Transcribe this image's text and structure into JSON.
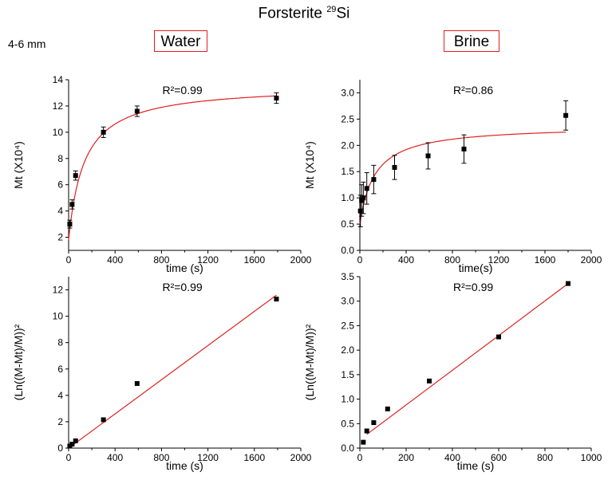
{
  "header": {
    "title_main": "Forsterite ",
    "title_sup": "29",
    "title_end": "Si",
    "size_label": "4-6 mm",
    "water_label": "Water",
    "brine_label": "Brine"
  },
  "colors": {
    "fit_line": "#e02020",
    "marker": "#000000",
    "axis": "#000000",
    "condition_box": "#e02020"
  },
  "chart_data": [
    {
      "type": "scatter",
      "panel": "water-top",
      "annotation": "R²=0.99",
      "xlabel": "time (s)",
      "ylabel": "Mt (X10⁴)",
      "xlim": [
        0,
        2000
      ],
      "ylim": [
        1,
        14
      ],
      "xticks": [
        0,
        400,
        800,
        1200,
        1600,
        2000
      ],
      "yticks": [
        2,
        4,
        6,
        8,
        10,
        12,
        14
      ],
      "points": [
        {
          "x": 10,
          "y": 3.0,
          "err": 0.3
        },
        {
          "x": 30,
          "y": 4.5,
          "err": 0.35
        },
        {
          "x": 60,
          "y": 6.7,
          "err": 0.35
        },
        {
          "x": 300,
          "y": 10.0,
          "err": 0.4
        },
        {
          "x": 590,
          "y": 11.6,
          "err": 0.4
        },
        {
          "x": 1790,
          "y": 12.6,
          "err": 0.4
        }
      ],
      "fit": {
        "kind": "saturation",
        "y0": 1.8,
        "ymax": 13.6,
        "tau": 135
      }
    },
    {
      "type": "scatter",
      "panel": "brine-top",
      "annotation": "R²=0.86",
      "xlabel": "time(s)",
      "ylabel": "Mt (X10⁴)",
      "xlim": [
        0,
        2000
      ],
      "ylim": [
        0.0,
        3.25
      ],
      "xticks": [
        0,
        400,
        800,
        1200,
        1600,
        2000
      ],
      "yticks": [
        0.0,
        0.5,
        1.0,
        1.5,
        2.0,
        2.5,
        3.0
      ],
      "points": [
        {
          "x": 5,
          "y": 0.75,
          "err": 0.3
        },
        {
          "x": 15,
          "y": 0.95,
          "err": 0.3
        },
        {
          "x": 30,
          "y": 1.0,
          "err": 0.3
        },
        {
          "x": 60,
          "y": 1.18,
          "err": 0.3
        },
        {
          "x": 120,
          "y": 1.35,
          "err": 0.27
        },
        {
          "x": 300,
          "y": 1.58,
          "err": 0.23
        },
        {
          "x": 590,
          "y": 1.8,
          "err": 0.25
        },
        {
          "x": 900,
          "y": 1.93,
          "err": 0.27
        },
        {
          "x": 1780,
          "y": 2.57,
          "err": 0.28
        }
      ],
      "fit": {
        "kind": "saturation",
        "y0": 0.5,
        "ymax": 2.38,
        "tau": 130,
        "xmax": 1780
      }
    },
    {
      "type": "scatter",
      "panel": "water-bottom",
      "annotation": "R²=0.99",
      "xlabel": "time (s)",
      "ylabel": "(Ln((M-Mt)/M))²",
      "xlim": [
        0,
        2000
      ],
      "ylim": [
        0,
        13
      ],
      "xticks": [
        0,
        400,
        800,
        1200,
        1600,
        2000
      ],
      "yticks": [
        0,
        2,
        4,
        6,
        8,
        10,
        12
      ],
      "points": [
        {
          "x": 10,
          "y": 0.15
        },
        {
          "x": 30,
          "y": 0.3
        },
        {
          "x": 60,
          "y": 0.55
        },
        {
          "x": 300,
          "y": 2.15
        },
        {
          "x": 590,
          "y": 4.9
        },
        {
          "x": 1790,
          "y": 11.3
        }
      ],
      "fit": {
        "kind": "linear",
        "x1": 0,
        "y1": 0.0,
        "x2": 1790,
        "y2": 11.6
      }
    },
    {
      "type": "scatter",
      "panel": "brine-bottom",
      "annotation": "R²=0.99",
      "xlabel": "time (s)",
      "ylabel": "(Ln((M-Mt)/M))²",
      "xlim": [
        0,
        1000
      ],
      "ylim": [
        0,
        3.5
      ],
      "xticks": [
        0,
        200,
        400,
        600,
        800,
        1000
      ],
      "yticks": [
        0.0,
        0.5,
        1.0,
        1.5,
        2.0,
        2.5,
        3.0,
        3.5
      ],
      "points": [
        {
          "x": 15,
          "y": 0.12
        },
        {
          "x": 30,
          "y": 0.35
        },
        {
          "x": 60,
          "y": 0.52
        },
        {
          "x": 120,
          "y": 0.8
        },
        {
          "x": 300,
          "y": 1.37
        },
        {
          "x": 600,
          "y": 2.27
        },
        {
          "x": 900,
          "y": 3.36
        }
      ],
      "fit": {
        "kind": "linear",
        "x1": 30,
        "y1": 0.28,
        "x2": 900,
        "y2": 3.36
      }
    }
  ]
}
